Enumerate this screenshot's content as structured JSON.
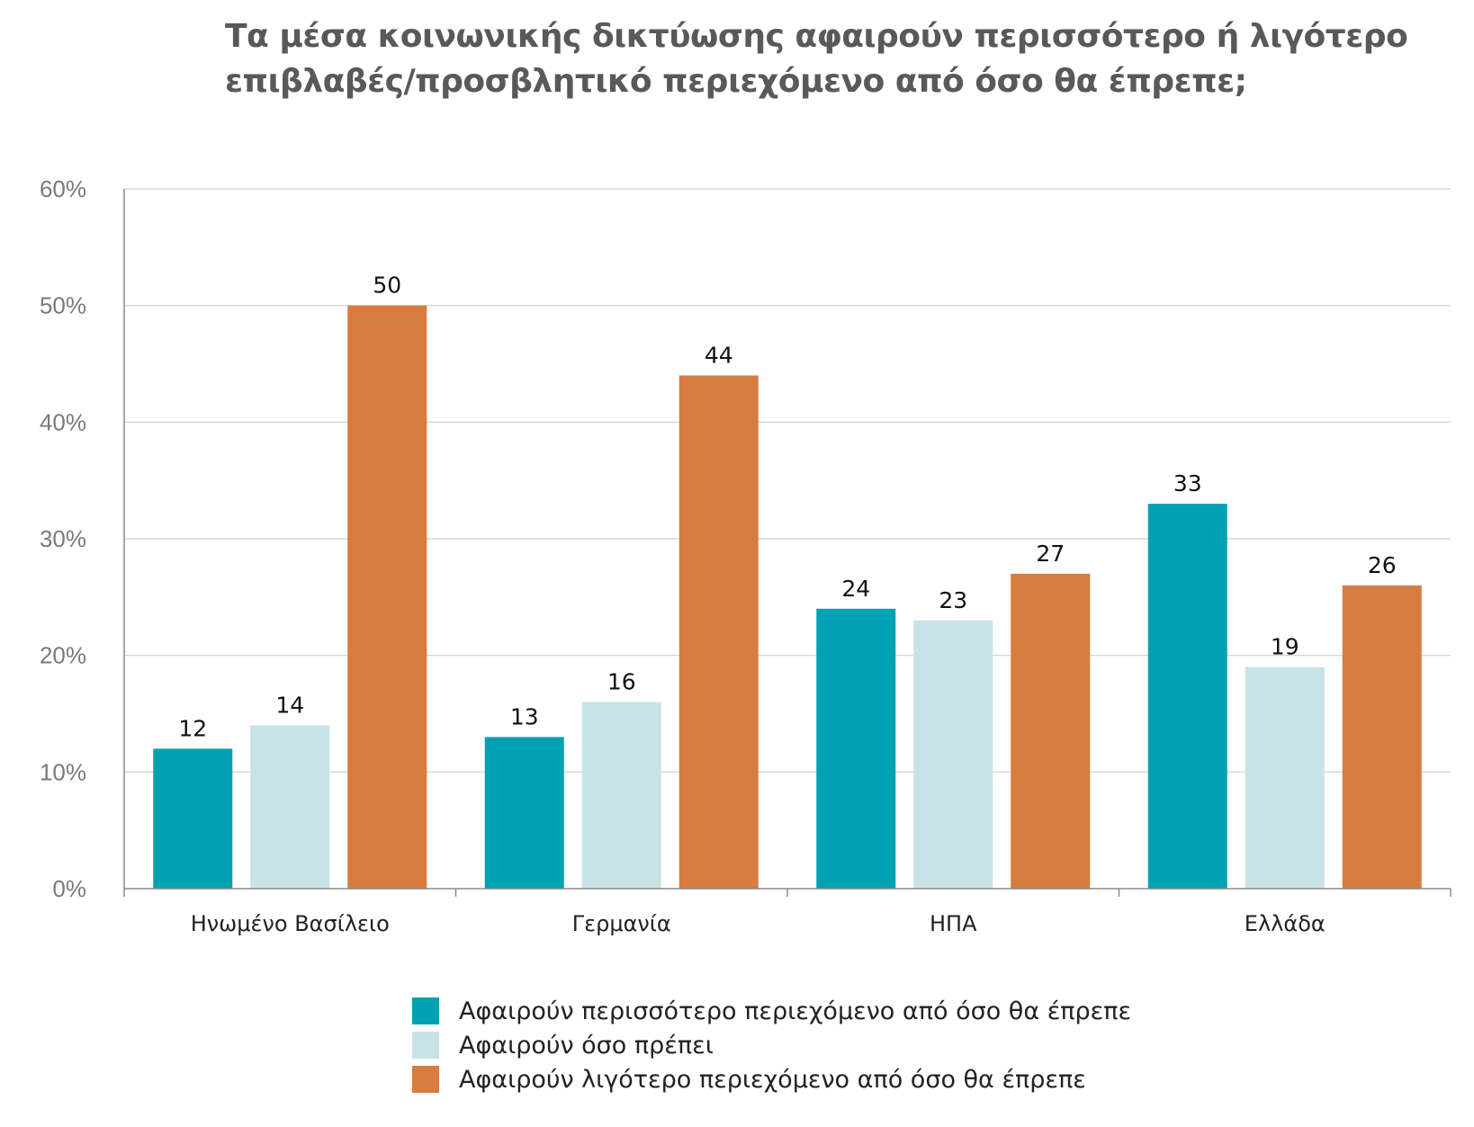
{
  "title_lines": [
    "Τα μέσα κοινωνικής δικτύωσης αφαιρούν περισσότερο ή λιγότερο",
    "επιβλαβές/προσβλητικό περιεχόμενο από όσο θα έπρεπε;"
  ],
  "chart_data": {
    "type": "bar",
    "title": "Τα μέσα κοινωνικής δικτύωσης αφαιρούν περισσότερο ή λιγότερο επιβλαβές/προσβλητικό περιεχόμενο από όσο θα έπρεπε;",
    "categories": [
      "Ηνωμένο Βασίλειο",
      "Γερμανία",
      "ΗΠΑ",
      "Ελλάδα"
    ],
    "series": [
      {
        "name": "Αφαιρούν περισσότερο περιεχόμενο από όσο θα έπρεπε",
        "color": "#00a2b1",
        "values": [
          12,
          13,
          24,
          33
        ]
      },
      {
        "name": "Αφαιρούν όσο πρέπει",
        "color": "#c8e3e6",
        "values": [
          14,
          16,
          23,
          19
        ]
      },
      {
        "name": "Αφαιρούν λιγότερο περιεχόμενο από όσο θα έπρεπε",
        "color": "#d87b3e",
        "values": [
          50,
          44,
          27,
          26
        ]
      }
    ],
    "yticks": [
      "0%",
      "10%",
      "20%",
      "30%",
      "40%",
      "50%",
      "60%"
    ],
    "ylim": [
      0,
      60
    ],
    "xlabel": "",
    "ylabel": "",
    "grid": true,
    "legend_position": "bottom"
  }
}
